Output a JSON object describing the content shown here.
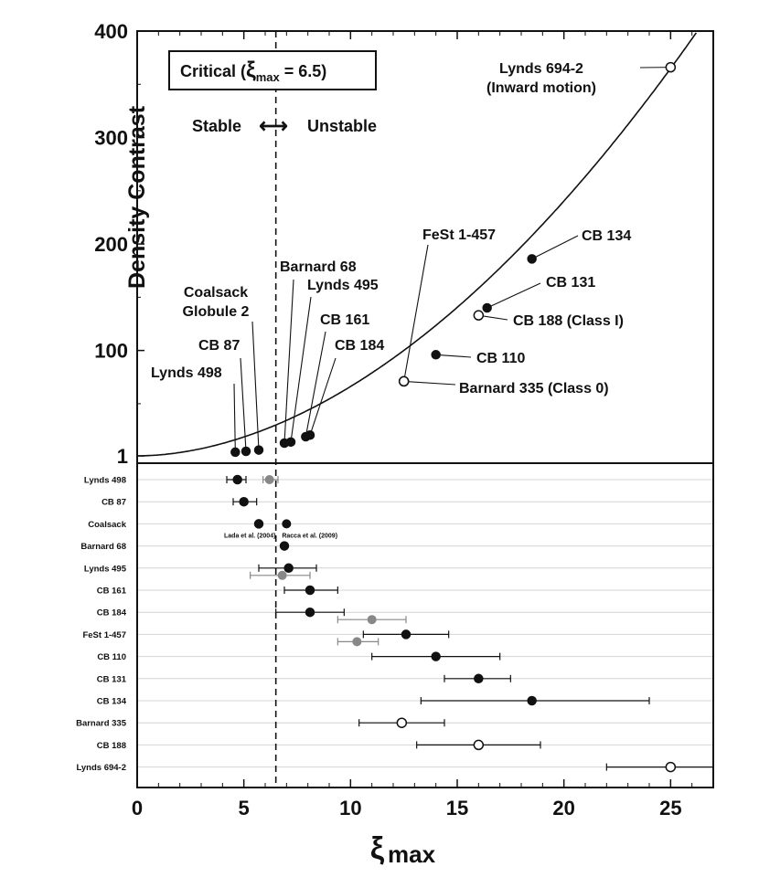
{
  "chart_data": {
    "type": "scatter",
    "xlabel": "ξmax",
    "xlim": [
      0,
      27
    ],
    "xticks": [
      0,
      5,
      10,
      15,
      20,
      25
    ],
    "top_panel": {
      "ylabel": "Density Contrast",
      "ylim": [
        1,
        400
      ],
      "yticks": [
        1,
        100,
        200,
        300,
        400
      ],
      "curve_name": "Bonnor-Ebert density contrast",
      "critical_label_pre": "Critical (",
      "critical_symbol": "ξ",
      "critical_sub": "max",
      "critical_value": " = 6.5)",
      "critical_x": 6.5,
      "stable_label": "Stable",
      "unstable_label": "Unstable",
      "stability_arrow": "⟷",
      "points": [
        {
          "name": "Lynds 498",
          "x": 4.6,
          "y": 4.5,
          "filled": true
        },
        {
          "name": "CB 87",
          "x": 5.1,
          "y": 5.3,
          "filled": true
        },
        {
          "name": "Coalsack Globule 2",
          "x": 5.7,
          "y": 6.5,
          "filled": true
        },
        {
          "name": "Barnard 68",
          "x": 6.9,
          "y": 13,
          "filled": true
        },
        {
          "name": "Lynds 495",
          "x": 7.2,
          "y": 14,
          "filled": true
        },
        {
          "name": "CB 161",
          "x": 7.9,
          "y": 19,
          "filled": true
        },
        {
          "name": "CB 184",
          "x": 8.1,
          "y": 20.5,
          "filled": true
        },
        {
          "name": "Barnard 335 (Class 0)",
          "x": 12.5,
          "y": 71,
          "filled": false
        },
        {
          "name": "FeSt 1-457",
          "x": 12.5,
          "y": 71,
          "filled": false
        },
        {
          "name": "CB 110",
          "x": 14.0,
          "y": 96,
          "filled": true
        },
        {
          "name": "CB 188 (Class I)",
          "x": 16.0,
          "y": 133,
          "filled": false
        },
        {
          "name": "CB 131",
          "x": 16.4,
          "y": 140,
          "filled": true
        },
        {
          "name": "CB 134",
          "x": 18.5,
          "y": 186,
          "filled": true
        },
        {
          "name": "Lynds 694-2 (Inward motion)",
          "x": 25.0,
          "y": 366,
          "filled": false
        }
      ],
      "labels": [
        {
          "lines": [
            "Lynds 498"
          ]
        },
        {
          "lines": [
            "CB 87"
          ]
        },
        {
          "lines": [
            "Coalsack",
            "Globule 2"
          ]
        },
        {
          "lines": [
            "Barnard 68"
          ]
        },
        {
          "lines": [
            "Lynds 495"
          ]
        },
        {
          "lines": [
            "CB 161"
          ]
        },
        {
          "lines": [
            "CB 184"
          ]
        },
        {
          "lines": [
            "FeSt 1-457"
          ]
        },
        {
          "lines": [
            "CB 134"
          ]
        },
        {
          "lines": [
            "CB 131"
          ]
        },
        {
          "lines": [
            "CB 188 (Class I)"
          ]
        },
        {
          "lines": [
            "CB 110"
          ]
        },
        {
          "lines": [
            "Barnard 335 (Class 0)"
          ]
        },
        {
          "lines": [
            "Lynds 694-2",
            "(Inward motion)"
          ]
        }
      ]
    },
    "bottom_panel": {
      "rows": [
        {
          "name": "Lynds 498",
          "x": 4.7,
          "err": [
            4.2,
            5.1
          ],
          "filled": true,
          "alt": {
            "x": 6.2,
            "err": [
              5.9,
              6.6
            ]
          }
        },
        {
          "name": "CB 87",
          "x": 5.0,
          "err": [
            4.5,
            5.6
          ],
          "filled": true
        },
        {
          "name": "Coalsack",
          "x": 5.7,
          "err": null,
          "filled": true,
          "alt": {
            "x": 7.0,
            "err": null
          }
        },
        {
          "name": "Barnard 68",
          "x": 6.9,
          "err": null,
          "filled": true
        },
        {
          "name": "Lynds 495",
          "x": 7.1,
          "err": [
            5.7,
            8.4
          ],
          "filled": true,
          "alt": {
            "x": 6.8,
            "err": [
              5.3,
              8.1
            ]
          }
        },
        {
          "name": "CB 161",
          "x": 8.1,
          "err": [
            6.9,
            9.4
          ],
          "filled": true
        },
        {
          "name": "CB 184",
          "x": 8.1,
          "err": [
            6.5,
            9.7
          ],
          "filled": true,
          "alt": {
            "x": 11.0,
            "err": [
              9.4,
              12.6
            ]
          }
        },
        {
          "name": "FeSt 1-457",
          "x": 12.6,
          "err": [
            10.6,
            14.6
          ],
          "filled": true,
          "alt": {
            "x": 10.3,
            "err": [
              9.4,
              11.3
            ]
          }
        },
        {
          "name": "CB 110",
          "x": 14.0,
          "err": [
            11.0,
            17.0
          ],
          "filled": true
        },
        {
          "name": "CB 131",
          "x": 16.0,
          "err": [
            14.4,
            17.5
          ],
          "filled": true
        },
        {
          "name": "CB 134",
          "x": 18.5,
          "err": [
            13.3,
            24.0
          ],
          "filled": true
        },
        {
          "name": "Barnard 335",
          "x": 12.4,
          "err": [
            10.4,
            14.4
          ],
          "filled": false
        },
        {
          "name": "CB 188",
          "x": 16.0,
          "err": [
            13.1,
            18.9
          ],
          "filled": false
        },
        {
          "name": "Lynds 694-2",
          "x": 25.0,
          "err": [
            22.0,
            27.0
          ],
          "filled": false
        }
      ],
      "ref_left": "Lada et al. (2004)",
      "ref_right": "Racca et al. (2009)"
    }
  }
}
